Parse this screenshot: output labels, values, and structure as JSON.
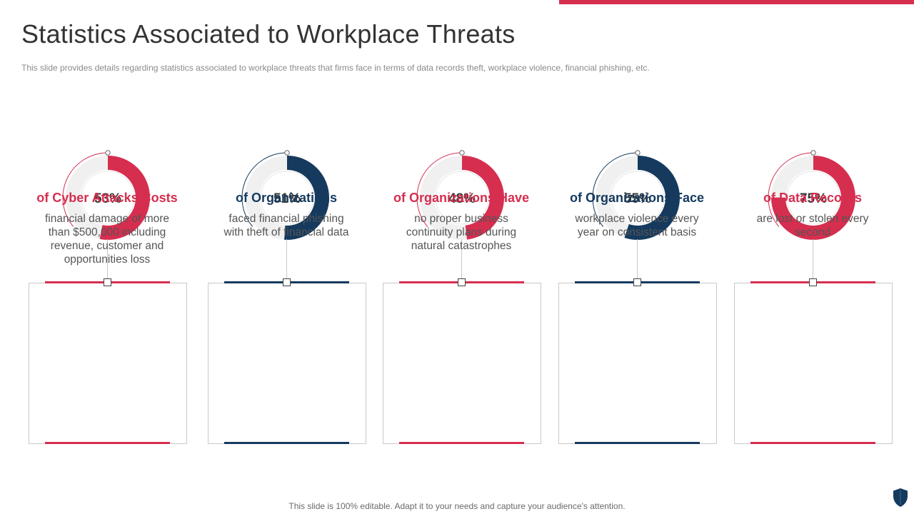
{
  "slide": {
    "title": "Statistics Associated to Workplace Threats",
    "subtitle": "This slide provides  details regarding statistics associated to workplace threats that firms face in terms of data records theft, workplace violence, financial phishing, etc.",
    "footer": "This slide is 100% editable. Adapt it to your needs and capture your audience's attention."
  },
  "colors": {
    "red": "#d62e4f",
    "navy": "#153a5e",
    "track": "#f0f0f0",
    "text": "#555555"
  },
  "icons": {
    "corner": "shield-icon"
  },
  "chart_data": [
    {
      "type": "donut",
      "percent_label": "53%",
      "value": 53,
      "color": "red"
    },
    {
      "type": "donut",
      "percent_label": "51%",
      "value": 51,
      "color": "navy"
    },
    {
      "type": "donut",
      "percent_label": "48%",
      "value": 48,
      "color": "red"
    },
    {
      "type": "donut",
      "percent_label": "55%",
      "value": 55,
      "color": "navy"
    },
    {
      "type": "donut",
      "percent_label": "75%",
      "value": 75,
      "color": "red"
    }
  ],
  "cards": [
    {
      "heading": "of Cyber Attacks Costs",
      "text": "financial damage of more than $500,000 including revenue, customer and opportunities loss"
    },
    {
      "heading": "of Organizations",
      "text": "faced financial phishing with theft of financial data"
    },
    {
      "heading": "of Organizations Have",
      "text": "no proper business continuity plans during natural catastrophes"
    },
    {
      "heading": "of Organizations Face",
      "text": "workplace violence every year on consistent basis"
    },
    {
      "heading": "of Data Records",
      "text": "are lost or stolen every second"
    }
  ]
}
